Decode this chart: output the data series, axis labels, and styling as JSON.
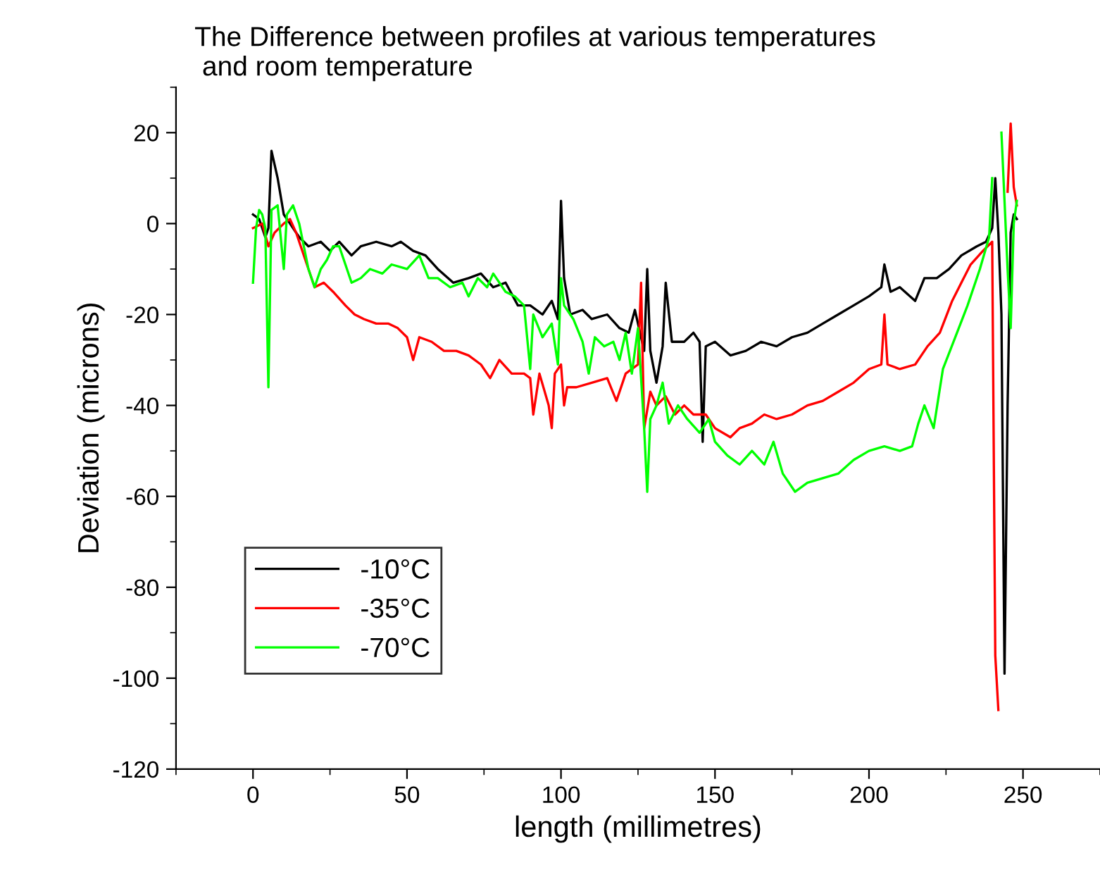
{
  "chart_data": {
    "type": "line",
    "title": "The Difference between profiles at various temperatures\n and room temperature",
    "xlabel": "length (millimetres)",
    "ylabel": "Deviation (microns)",
    "xlim": [
      -25,
      275
    ],
    "xticks": [
      0,
      50,
      100,
      150,
      200,
      250
    ],
    "ylim": [
      -120,
      30
    ],
    "yticks": [
      -120,
      -100,
      -80,
      -60,
      -40,
      -20,
      0,
      20
    ],
    "grid": false,
    "legend": "bottom left",
    "marker": "none",
    "line_style": "solid",
    "series": [
      {
        "name": "-10°C",
        "color": "#000000",
        "x": [
          0,
          2,
          4,
          5,
          6,
          8,
          10,
          12,
          15,
          18,
          22,
          25,
          28,
          32,
          35,
          40,
          45,
          48,
          52,
          56,
          60,
          65,
          70,
          74,
          78,
          82,
          86,
          90,
          94,
          97,
          99,
          100,
          101,
          103,
          107,
          110,
          115,
          119,
          122,
          124,
          127,
          128,
          129,
          131,
          133,
          134,
          136,
          140,
          143,
          145,
          146,
          147,
          150,
          155,
          160,
          165,
          170,
          175,
          180,
          185,
          190,
          195,
          200,
          204,
          205,
          207,
          210,
          215,
          218,
          222,
          226,
          230,
          235,
          238,
          240,
          241,
          242,
          243,
          244,
          245,
          246,
          247,
          248
        ],
        "values": [
          2,
          1,
          -3,
          -1,
          16,
          10,
          2,
          0,
          -3,
          -5,
          -4,
          -6,
          -4,
          -7,
          -5,
          -4,
          -5,
          -4,
          -6,
          -7,
          -10,
          -13,
          -12,
          -11,
          -14,
          -13,
          -18,
          -18,
          -20,
          -17,
          -21,
          5,
          -12,
          -20,
          -19,
          -21,
          -20,
          -23,
          -24,
          -19,
          -28,
          -10,
          -28,
          -35,
          -27,
          -13,
          -26,
          -26,
          -24,
          -26,
          -48,
          -27,
          -26,
          -29,
          -28,
          -26,
          -27,
          -25,
          -24,
          -22,
          -20,
          -18,
          -16,
          -14,
          -9,
          -15,
          -14,
          -17,
          -12,
          -12,
          -10,
          -7,
          -5,
          -4,
          -1,
          10,
          -2,
          -20,
          -99,
          -40,
          -2,
          2,
          1
        ]
      },
      {
        "name": "-35°C",
        "color": "#ff0000",
        "x": [
          0,
          3,
          5,
          7,
          10,
          12,
          14,
          17,
          20,
          23,
          26,
          30,
          33,
          36,
          40,
          44,
          47,
          50,
          52,
          54,
          58,
          62,
          66,
          70,
          74,
          77,
          80,
          84,
          88,
          90,
          91,
          93,
          96,
          97,
          98,
          100,
          101,
          102,
          105,
          110,
          115,
          118,
          121,
          123,
          125,
          126,
          127,
          129,
          131,
          134,
          137,
          140,
          143,
          147,
          150,
          155,
          158,
          162,
          166,
          170,
          175,
          180,
          185,
          190,
          195,
          200,
          204,
          205,
          206,
          210,
          215,
          219,
          223,
          227,
          230,
          233,
          237,
          240,
          241,
          242,
          242.5,
          243,
          245,
          246,
          247,
          248
        ],
        "values": [
          -1,
          0,
          -5,
          -2,
          0,
          1,
          -2,
          -8,
          -14,
          -13,
          -15,
          -18,
          -20,
          -21,
          -22,
          -22,
          -23,
          -25,
          -30,
          -25,
          -26,
          -28,
          -28,
          -29,
          -31,
          -34,
          -30,
          -33,
          -33,
          -34,
          -42,
          -33,
          -40,
          -45,
          -33,
          -31,
          -40,
          -36,
          -36,
          -35,
          -34,
          -39,
          -33,
          -32,
          -31,
          -13,
          -45,
          -37,
          -40,
          -38,
          -42,
          -40,
          -42,
          -42,
          -45,
          -47,
          -45,
          -44,
          -42,
          -43,
          -42,
          -40,
          -39,
          -37,
          -35,
          -32,
          -31,
          -20,
          -31,
          -32,
          -31,
          -27,
          -24,
          -17,
          -13,
          -9,
          -6,
          -4,
          -95,
          -107,
          null,
          null,
          7,
          22,
          8,
          4
        ]
      },
      {
        "name": "-70°C",
        "color": "#00ff00",
        "x": [
          0,
          1,
          2,
          3,
          4,
          5,
          6,
          8,
          10,
          11,
          13,
          15,
          18,
          20,
          22,
          24,
          26,
          28,
          30,
          32,
          35,
          38,
          42,
          45,
          50,
          54,
          57,
          60,
          64,
          68,
          70,
          73,
          76,
          78,
          82,
          85,
          88,
          90,
          91,
          94,
          97,
          99,
          100,
          101,
          104,
          107,
          109,
          111,
          114,
          117,
          119,
          121,
          123,
          125,
          127,
          128,
          129,
          131,
          133,
          135,
          138,
          141,
          145,
          148,
          150,
          154,
          158,
          162,
          166,
          169,
          172,
          176,
          180,
          185,
          190,
          195,
          200,
          205,
          210,
          214,
          216,
          218,
          221,
          224,
          228,
          232,
          236,
          239,
          240,
          241,
          242,
          243,
          245,
          246,
          247,
          248
        ],
        "values": [
          -13,
          -1,
          3,
          2,
          -1,
          -36,
          3,
          4,
          -10,
          2,
          4,
          0,
          -10,
          -14,
          -10,
          -8,
          -5,
          -5,
          -9,
          -13,
          -12,
          -10,
          -11,
          -9,
          -10,
          -7,
          -12,
          -12,
          -14,
          -13,
          -16,
          -12,
          -14,
          -11,
          -15,
          -16,
          -18,
          -32,
          -20,
          -25,
          -22,
          -31,
          -12,
          -18,
          -21,
          -26,
          -33,
          -25,
          -27,
          -26,
          -30,
          -24,
          -33,
          -23,
          -45,
          -59,
          -43,
          -40,
          -35,
          -44,
          -40,
          -43,
          -46,
          -43,
          -48,
          -51,
          -53,
          -50,
          -53,
          -48,
          -55,
          -59,
          -57,
          -56,
          -55,
          -52,
          -50,
          -49,
          -50,
          -49,
          -44,
          -40,
          -45,
          -32,
          -25,
          -18,
          -10,
          -3,
          10,
          null,
          null,
          20,
          -10,
          -23,
          0,
          5
        ]
      }
    ]
  }
}
